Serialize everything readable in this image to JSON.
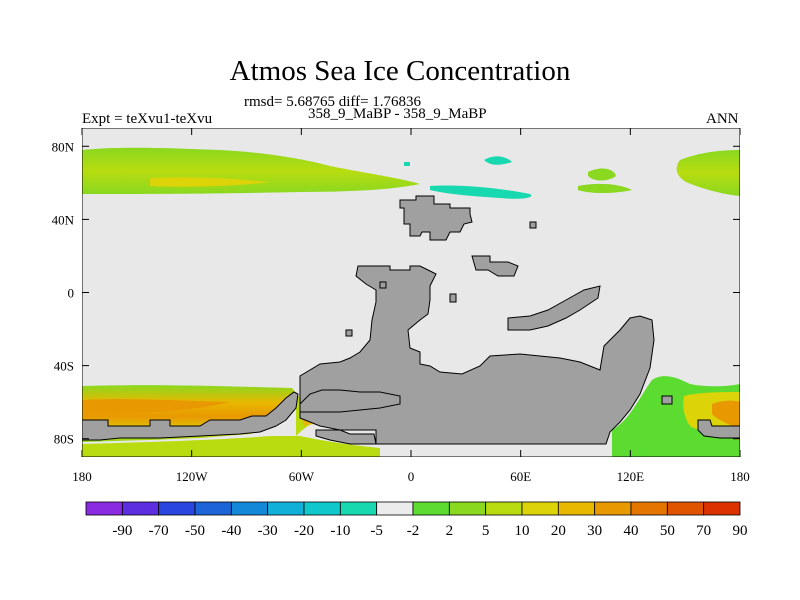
{
  "title": "Atmos Sea Ice Concentration",
  "stats": "rmsd= 5.68765 diff= 1.76836",
  "subtitle": "358_9_MaBP - 358_9_MaBP",
  "left_label": "Expt = teXvu1-teXvu",
  "right_label": "ANN",
  "map": {
    "projection": "cylindrical-equidistant",
    "lon_range": [
      -180,
      180
    ],
    "lat_range": [
      -90,
      90
    ],
    "x_ticks": [
      "180",
      "120W",
      "60W",
      "0",
      "60E",
      "120E",
      "180"
    ],
    "x_tick_values": [
      -180,
      -120,
      -60,
      0,
      60,
      120,
      180
    ],
    "y_ticks": [
      "80N",
      "40N",
      "0",
      "40S",
      "80S"
    ],
    "y_tick_values": [
      80,
      40,
      0,
      -40,
      -80
    ],
    "colors": {
      "background_field": "#e8e8e8",
      "land": "#a0a0a0",
      "coastline": "#000000"
    }
  },
  "colorbar": {
    "labels": [
      "-90",
      "-70",
      "-50",
      "-40",
      "-30",
      "-20",
      "-10",
      "-5",
      "-2",
      "2",
      "5",
      "10",
      "20",
      "30",
      "40",
      "50",
      "70",
      "90"
    ],
    "colors": [
      "#8a2be2",
      "#5c2ee0",
      "#2a46e0",
      "#1c64d8",
      "#1488d8",
      "#10b0d8",
      "#10c8cc",
      "#18d8b0",
      "#ececec",
      "#5cdc30",
      "#8ad820",
      "#b8dc10",
      "#dcd408",
      "#e8b800",
      "#e89800",
      "#e47600",
      "#e05400",
      "#dc3200"
    ]
  }
}
